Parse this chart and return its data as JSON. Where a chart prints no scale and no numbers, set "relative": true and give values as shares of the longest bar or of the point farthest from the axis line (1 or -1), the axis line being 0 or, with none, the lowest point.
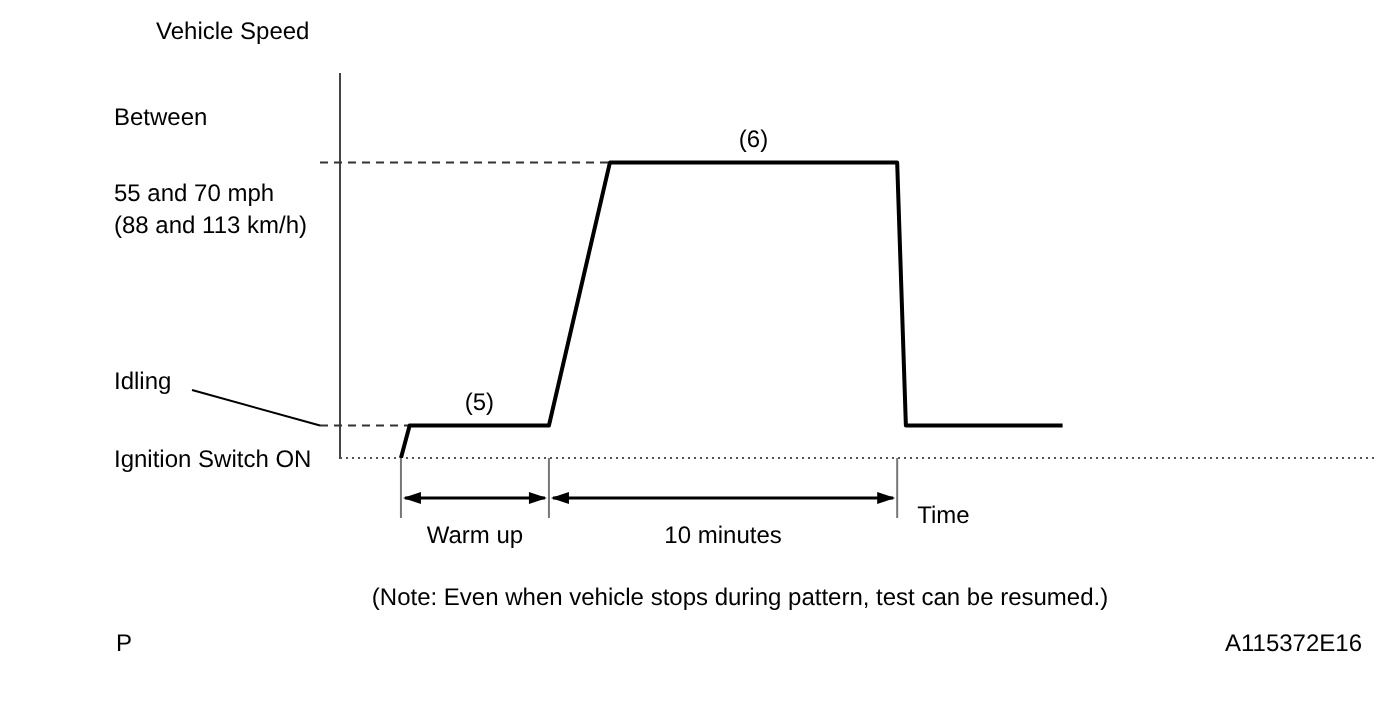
{
  "chart_data": {
    "type": "line",
    "relative": true,
    "xlabel": "Time",
    "tick_labels": false,
    "grid": false,
    "legend": false,
    "marker": "none",
    "line_style": "solid",
    "categories": [
      null,
      null,
      null,
      null,
      null,
      null,
      null,
      null,
      null,
      null,
      null,
      null,
      null,
      null,
      null,
      null,
      null,
      null,
      null,
      null,
      null,
      null,
      null,
      null,
      null,
      null,
      null,
      null,
      null,
      null,
      null,
      null,
      null,
      null,
      null,
      null,
      null,
      null,
      null,
      null,
      null,
      null,
      null,
      null,
      null,
      null,
      null,
      null,
      null,
      null,
      null,
      null,
      null,
      null,
      null,
      null,
      null,
      null,
      null,
      null,
      null,
      null,
      null,
      null,
      null,
      null,
      null,
      null,
      null,
      null,
      null,
      null,
      null,
      null,
      null,
      null,
      null,
      null,
      null,
      null,
      null,
      null,
      null,
      null,
      null,
      null,
      null,
      null,
      null,
      null,
      null,
      null,
      null,
      null,
      null,
      null,
      null,
      null,
      null,
      null,
      null,
      null,
      null,
      null,
      null,
      null,
      null,
      null,
      null,
      null,
      null,
      null,
      null,
      null,
      null,
      null,
      null,
      null,
      null,
      null
    ],
    "series": [
      {
        "color": "#000000",
        "values": [
          null,
          null,
          null,
          null,
          null,
          null,
          null,
          0,
          0.11,
          null,
          null,
          null,
          null,
          null,
          null,
          null,
          null,
          null,
          null,
          null,
          null,
          null,
          null,
          null,
          0.11,
          null,
          null,
          null,
          null,
          null,
          null,
          1,
          null,
          null,
          null,
          null,
          null,
          null,
          null,
          null,
          null,
          null,
          null,
          null,
          null,
          null,
          null,
          null,
          null,
          null,
          null,
          null,
          null,
          null,
          null,
          null,
          null,
          null,
          null,
          null,
          null,
          null,
          null,
          null,
          1,
          0.11,
          null,
          null,
          null,
          null,
          null,
          null,
          null,
          null,
          null,
          null,
          null,
          null,
          null,
          null,
          null,
          null,
          null,
          0.11,
          null,
          null,
          null,
          null,
          null,
          null,
          null,
          null,
          null,
          null,
          null,
          null,
          null,
          null,
          null,
          null,
          null,
          null,
          null,
          null,
          null,
          null,
          null,
          null,
          null,
          null,
          null,
          null,
          null,
          null,
          null,
          null,
          null,
          null,
          null,
          null
        ]
      }
    ],
    "annotations": [
      "Between",
      "55 and 70 mph",
      "(88 and 113 km/h)",
      "Idling",
      "(5)",
      "(6)",
      "Warm up",
      "10 minutes",
      "(Note: Even when vehicle stops during pattern, test can be resumed.)",
      "P",
      "A115372E16",
      "Ignition Switch ON",
      "Vehicle Speed"
    ]
  }
}
